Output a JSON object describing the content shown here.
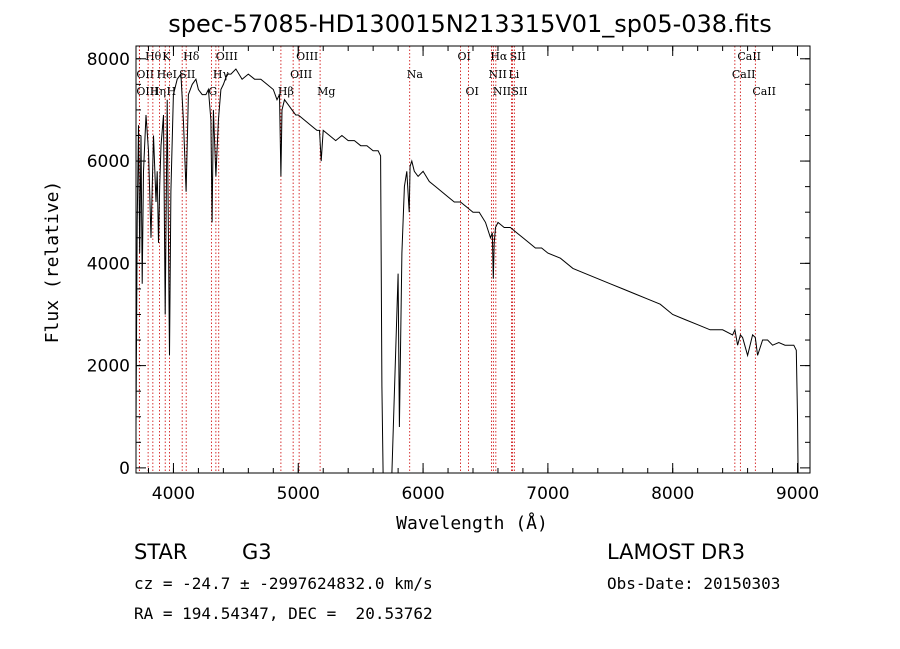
{
  "chart_data": {
    "type": "line",
    "title": "spec-57085-HD130015N213315V01_sp05-038.fits",
    "xlabel": "Wavelength (Å)",
    "ylabel": "Flux (relative)",
    "xlim": [
      3700,
      9100
    ],
    "ylim": [
      -100,
      8250
    ],
    "xticks": [
      4000,
      5000,
      6000,
      7000,
      8000,
      9000
    ],
    "xtick_labels": [
      "4000",
      "5000",
      "6000",
      "7000",
      "8000",
      "9000"
    ],
    "yticks": [
      0,
      2000,
      4000,
      6000,
      8000
    ],
    "ytick_labels": [
      "0",
      "2000",
      "4000",
      "6000",
      "8000"
    ],
    "series": [
      {
        "name": "flux",
        "color": "#000000",
        "x": [
          3700,
          3710,
          3720,
          3730,
          3740,
          3750,
          3760,
          3780,
          3800,
          3820,
          3840,
          3860,
          3870,
          3880,
          3890,
          3900,
          3920,
          3934,
          3950,
          3968,
          3980,
          4000,
          4030,
          4060,
          4080,
          4101,
          4120,
          4150,
          4180,
          4200,
          4230,
          4260,
          4280,
          4300,
          4310,
          4320,
          4340,
          4360,
          4380,
          4400,
          4430,
          4460,
          4500,
          4550,
          4600,
          4650,
          4700,
          4750,
          4800,
          4830,
          4850,
          4861,
          4870,
          4890,
          4920,
          4950,
          4980,
          5000,
          5050,
          5100,
          5150,
          5170,
          5184,
          5200,
          5250,
          5300,
          5350,
          5400,
          5450,
          5500,
          5550,
          5600,
          5640,
          5660,
          5670,
          5680,
          5700,
          5750,
          5800,
          5810,
          5830,
          5850,
          5870,
          5889,
          5896,
          5910,
          5930,
          5960,
          6000,
          6050,
          6100,
          6150,
          6200,
          6250,
          6300,
          6350,
          6400,
          6450,
          6500,
          6540,
          6555,
          6563,
          6570,
          6580,
          6600,
          6650,
          6700,
          6750,
          6800,
          6850,
          6900,
          6950,
          7000,
          7100,
          7200,
          7300,
          7400,
          7500,
          7600,
          7700,
          7800,
          7900,
          8000,
          8100,
          8200,
          8300,
          8400,
          8480,
          8498,
          8520,
          8542,
          8560,
          8600,
          8640,
          8662,
          8680,
          8720,
          8760,
          8800,
          8850,
          8900,
          8950,
          8970,
          8990,
          9000,
          9005
        ],
        "y": [
          800,
          4800,
          6700,
          4200,
          6500,
          3600,
          5800,
          6900,
          6200,
          4500,
          6500,
          5200,
          5800,
          4400,
          5500,
          6300,
          6900,
          3000,
          7200,
          2200,
          5400,
          7300,
          7600,
          7700,
          6800,
          5400,
          7300,
          7500,
          7600,
          7400,
          7300,
          7300,
          7400,
          6800,
          4800,
          7000,
          5700,
          6800,
          7400,
          7500,
          7700,
          7700,
          7800,
          7600,
          7700,
          7600,
          7600,
          7500,
          7400,
          7200,
          7300,
          5700,
          7000,
          7200,
          7100,
          7000,
          6900,
          6900,
          6800,
          6700,
          6600,
          6600,
          6000,
          6600,
          6500,
          6400,
          6500,
          6400,
          6400,
          6300,
          6300,
          6200,
          6200,
          6100,
          1600,
          -200,
          -200,
          -200,
          3800,
          800,
          4200,
          5500,
          5800,
          5000,
          5900,
          6000,
          5800,
          5700,
          5800,
          5600,
          5500,
          5400,
          5300,
          5200,
          5200,
          5100,
          5000,
          5000,
          4800,
          4500,
          4600,
          3700,
          4400,
          4700,
          4800,
          4700,
          4700,
          4600,
          4500,
          4400,
          4300,
          4300,
          4200,
          4100,
          3900,
          3800,
          3700,
          3600,
          3500,
          3400,
          3300,
          3200,
          3000,
          2900,
          2800,
          2700,
          2700,
          2600,
          2700,
          2400,
          2600,
          2550,
          2200,
          2600,
          2550,
          2200,
          2500,
          2500,
          2400,
          2450,
          2400,
          2400,
          2400,
          2300,
          1000,
          -100
        ]
      }
    ],
    "spectral_lines": [
      {
        "label": "Hθ",
        "x": 3797,
        "row": 0
      },
      {
        "label": "K",
        "x": 3934,
        "row": 0
      },
      {
        "label": "Hδ",
        "x": 4102,
        "row": 0
      },
      {
        "label": "OII",
        "x": 3727,
        "row": 1
      },
      {
        "label": "HeI",
        "x": 3889,
        "row": 1
      },
      {
        "label": "SII",
        "x": 4070,
        "row": 1
      },
      {
        "label": "OIII",
        "x": 3727,
        "row": 2
      },
      {
        "label": "Hη",
        "x": 3835,
        "row": 2
      },
      {
        "label": "H",
        "x": 3968,
        "row": 2
      },
      {
        "label": "OIII",
        "x": 4363,
        "row": 0
      },
      {
        "label": "Hγ",
        "x": 4340,
        "row": 1
      },
      {
        "label": "G",
        "x": 4304,
        "row": 2
      },
      {
        "label": "OIII",
        "x": 5007,
        "row": 0
      },
      {
        "label": "OIII",
        "x": 4959,
        "row": 1
      },
      {
        "label": "Hβ",
        "x": 4861,
        "row": 2
      },
      {
        "label": "Mg",
        "x": 5175,
        "row": 2
      },
      {
        "label": "Na",
        "x": 5893,
        "row": 1
      },
      {
        "label": "OI",
        "x": 6300,
        "row": 0
      },
      {
        "label": "OI",
        "x": 6364,
        "row": 2
      },
      {
        "label": "Hα",
        "x": 6563,
        "row": 0
      },
      {
        "label": "SII",
        "x": 6717,
        "row": 0
      },
      {
        "label": "NII",
        "x": 6548,
        "row": 1
      },
      {
        "label": "Li",
        "x": 6708,
        "row": 1
      },
      {
        "label": "NII",
        "x": 6583,
        "row": 2
      },
      {
        "label": "SII",
        "x": 6731,
        "row": 2
      },
      {
        "label": "CaII",
        "x": 8542,
        "row": 0
      },
      {
        "label": "CaII",
        "x": 8498,
        "row": 1
      },
      {
        "label": "CaII",
        "x": 8662,
        "row": 2
      }
    ],
    "line_color": "#cc0000"
  },
  "info": {
    "object_class": "STAR",
    "subclass": "G3",
    "survey": "LAMOST DR3",
    "cz": "cz = -24.7 ± -2997624832.0 km/s",
    "obs_date": "Obs-Date: 20150303",
    "coords": "RA = 194.54347, DEC =  20.53762"
  }
}
